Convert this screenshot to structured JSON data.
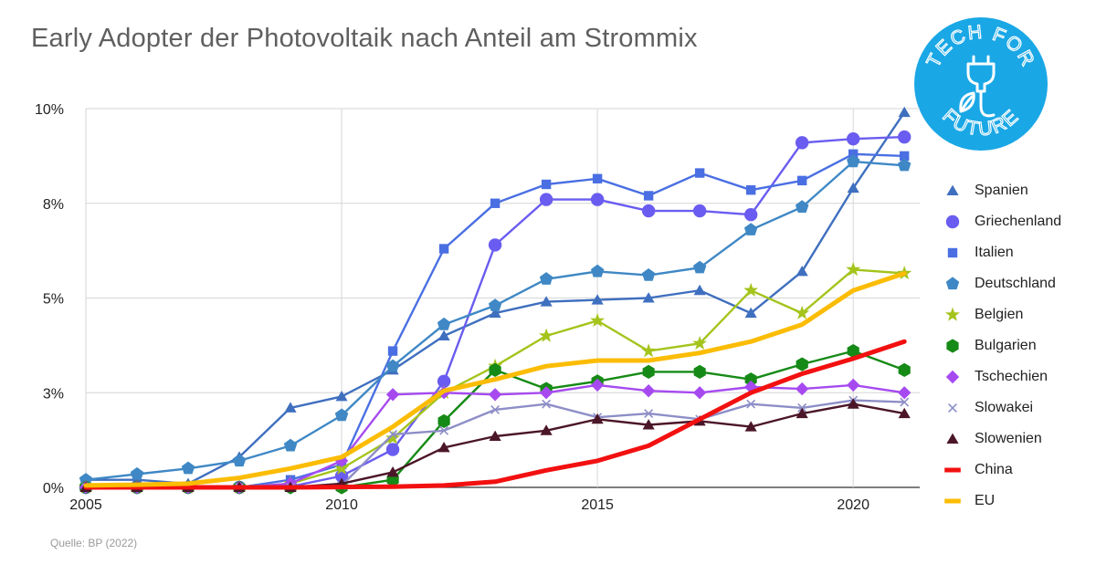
{
  "title": "Early Adopter der Photovoltaik nach Anteil am Strommix",
  "source": "Quelle: BP (2022)",
  "logo": {
    "top_text": "TECH FOR",
    "bottom_text": "FUTURE",
    "color": "#1aa7e6"
  },
  "chart_data": {
    "type": "line",
    "title": "Early Adopter der Photovoltaik nach Anteil am Strommix",
    "xlabel": "",
    "ylabel": "",
    "x": [
      2005,
      2006,
      2007,
      2008,
      2009,
      2010,
      2011,
      2012,
      2013,
      2014,
      2015,
      2016,
      2017,
      2018,
      2019,
      2020,
      2021
    ],
    "xlim": [
      2005,
      2021.3
    ],
    "ylim": [
      0,
      10
    ],
    "x_ticks": [
      2005,
      2010,
      2015,
      2020
    ],
    "x_tick_labels": [
      "2005",
      "2010",
      "2015",
      "2020"
    ],
    "y_ticks": [
      0,
      2.5,
      5,
      7.5,
      10
    ],
    "y_tick_labels": [
      "0%",
      "3%",
      "5%",
      "8%",
      "10%"
    ],
    "grid": true,
    "legend_position": "right",
    "series": [
      {
        "name": "Spanien",
        "color": "#3f6fbf",
        "marker": "triangle",
        "values": [
          0.2,
          0.2,
          0.1,
          0.8,
          2.1,
          2.4,
          3.1,
          4.0,
          4.6,
          4.9,
          4.95,
          5.0,
          5.2,
          4.6,
          5.7,
          7.9,
          9.9
        ]
      },
      {
        "name": "Griechenland",
        "color": "#6a5cf0",
        "marker": "circle",
        "values": [
          0,
          0,
          0,
          0,
          0.02,
          0.3,
          1.0,
          2.8,
          6.4,
          7.6,
          7.6,
          7.3,
          7.3,
          7.2,
          9.1,
          9.2,
          9.25
        ]
      },
      {
        "name": "Italien",
        "color": "#4a6fe3",
        "marker": "square",
        "values": [
          0,
          0,
          0,
          0,
          0.2,
          0.6,
          3.6,
          6.3,
          7.5,
          8.0,
          8.15,
          7.7,
          8.3,
          7.85,
          8.1,
          8.8,
          8.75
        ]
      },
      {
        "name": "Deutschland",
        "color": "#3f88c5",
        "marker": "pentagon",
        "values": [
          0.2,
          0.35,
          0.5,
          0.7,
          1.1,
          1.9,
          3.2,
          4.3,
          4.8,
          5.5,
          5.7,
          5.6,
          5.8,
          6.8,
          7.4,
          8.6,
          8.5
        ]
      },
      {
        "name": "Belgien",
        "color": "#a4c41c",
        "marker": "star",
        "values": [
          0,
          0,
          0,
          0,
          0.1,
          0.5,
          1.3,
          2.5,
          3.2,
          4.0,
          4.4,
          3.6,
          3.8,
          5.2,
          4.6,
          5.75,
          5.65
        ]
      },
      {
        "name": "Bulgarien",
        "color": "#168a16",
        "marker": "hexagon",
        "values": [
          0,
          0,
          0,
          0,
          0,
          0,
          0.2,
          1.75,
          3.1,
          2.6,
          2.8,
          3.05,
          3.05,
          2.85,
          3.25,
          3.6,
          3.1
        ]
      },
      {
        "name": "Tschechien",
        "color": "#a64af0",
        "marker": "diamond",
        "values": [
          0,
          0,
          0,
          0,
          0.1,
          0.7,
          2.45,
          2.5,
          2.45,
          2.5,
          2.7,
          2.55,
          2.5,
          2.65,
          2.6,
          2.7,
          2.5
        ]
      },
      {
        "name": "Slowakei",
        "color": "#8e8ec8",
        "marker": "x",
        "values": [
          0,
          0,
          0,
          0,
          0,
          0.05,
          1.4,
          1.5,
          2.05,
          2.2,
          1.85,
          1.95,
          1.8,
          2.2,
          2.1,
          2.3,
          2.25
        ]
      },
      {
        "name": "Slowenien",
        "color": "#4b1628",
        "marker": "triangle",
        "values": [
          0,
          0,
          0,
          0,
          0,
          0.1,
          0.4,
          1.05,
          1.35,
          1.5,
          1.8,
          1.65,
          1.75,
          1.6,
          1.95,
          2.2,
          1.95
        ]
      },
      {
        "name": "China",
        "color": "#f21010",
        "marker": "line",
        "values": [
          0,
          0,
          0,
          0,
          0,
          0.01,
          0.02,
          0.05,
          0.15,
          0.45,
          0.7,
          1.1,
          1.8,
          2.5,
          3.0,
          3.4,
          3.85
        ]
      },
      {
        "name": "EU",
        "color": "#fbbc04",
        "marker": "line",
        "values": [
          0.05,
          0.07,
          0.1,
          0.25,
          0.5,
          0.8,
          1.6,
          2.55,
          2.85,
          3.2,
          3.35,
          3.35,
          3.55,
          3.85,
          4.3,
          5.2,
          5.65
        ]
      }
    ]
  }
}
